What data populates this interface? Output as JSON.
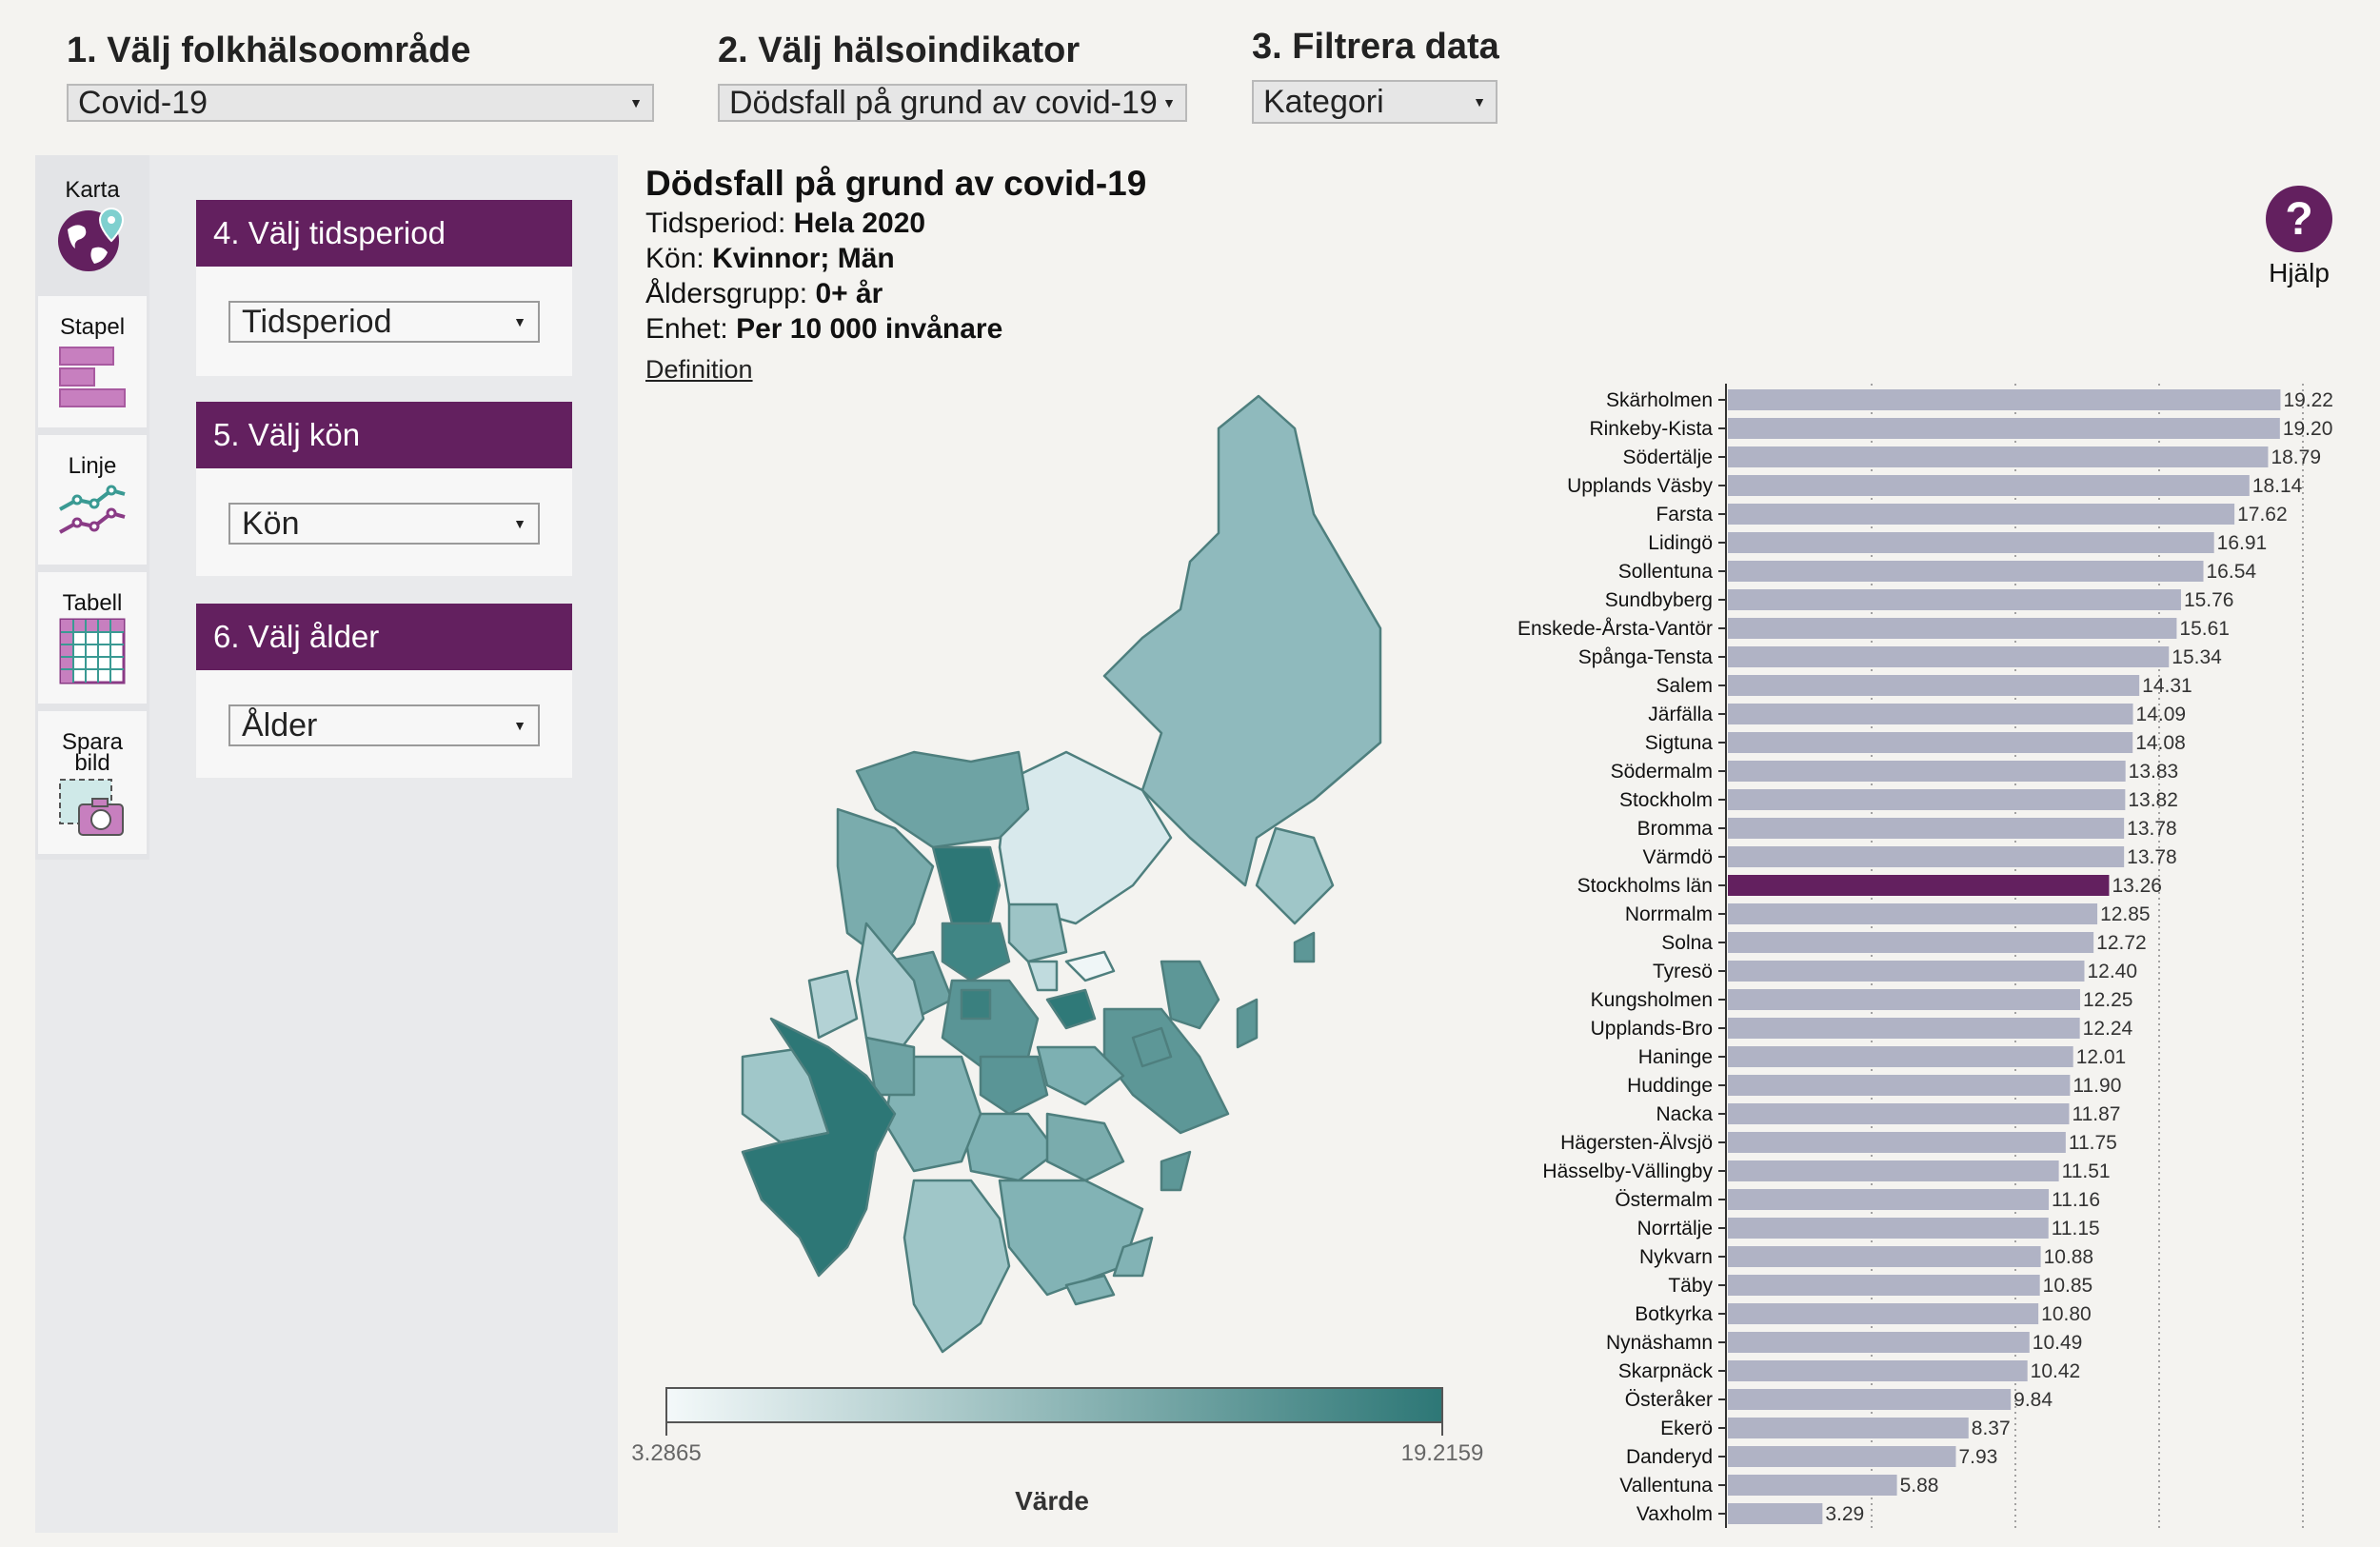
{
  "steps": {
    "step1": {
      "title": "1. Välj folkhälsoområde",
      "value": "Covid-19"
    },
    "step2": {
      "title": "2. Välj hälsoindikator",
      "value": "Dödsfall på grund av covid-19"
    },
    "step3": {
      "title": "3. Filtrera data",
      "value": "Kategori"
    }
  },
  "tools": [
    {
      "label": "Karta",
      "icon": "globe-icon"
    },
    {
      "label": "Stapel",
      "icon": "bar-chart-icon"
    },
    {
      "label": "Linje",
      "icon": "line-chart-icon"
    },
    {
      "label": "Tabell",
      "icon": "table-icon"
    },
    {
      "label": "Spara bild",
      "icon": "camera-icon"
    }
  ],
  "filters": [
    {
      "title": "4. Välj tidsperiod",
      "value": "Tidsperiod"
    },
    {
      "title": "5. Välj kön",
      "value": "Kön"
    },
    {
      "title": "6. Välj ålder",
      "value": "Ålder"
    }
  ],
  "info": {
    "title": "Dödsfall på grund av covid-19",
    "period_label": "Tidsperiod:",
    "period_value": "Hela 2020",
    "sex_label": "Kön:",
    "sex_value": "Kvinnor; Män",
    "age_label": "Åldersgrupp:",
    "age_value": "0+ år",
    "unit_label": "Enhet:",
    "unit_value": "Per 10 000 invånare",
    "definition_link": "Definition"
  },
  "help": {
    "label": "Hjälp",
    "icon": "question-icon"
  },
  "legend": {
    "min": "3.2865",
    "max": "19.2159",
    "title": "Värde",
    "color_low": "#f4f9fa",
    "color_high": "#2d7776"
  },
  "colors": {
    "accent": "#63205f",
    "bar": "#b0b3c5",
    "highlight_bar": "#63205f"
  },
  "chart_data": {
    "type": "bar",
    "orientation": "horizontal",
    "categories": [
      "Skärholmen",
      "Rinkeby-Kista",
      "Södertälje",
      "Upplands Väsby",
      "Farsta",
      "Lidingö",
      "Sollentuna",
      "Sundbyberg",
      "Enskede-Årsta-Vantör",
      "Spånga-Tensta",
      "Salem",
      "Järfälla",
      "Sigtuna",
      "Södermalm",
      "Stockholm",
      "Bromma",
      "Värmdö",
      "Stockholms län",
      "Norrmalm",
      "Solna",
      "Tyresö",
      "Kungsholmen",
      "Upplands-Bro",
      "Haninge",
      "Huddinge",
      "Nacka",
      "Hägersten-Älvsjö",
      "Hässelby-Vällingby",
      "Östermalm",
      "Norrtälje",
      "Nykvarn",
      "Täby",
      "Botkyrka",
      "Nynäshamn",
      "Skarpnäck",
      "Österåker",
      "Ekerö",
      "Danderyd",
      "Vallentuna",
      "Vaxholm"
    ],
    "values": [
      19.22,
      19.2,
      18.79,
      18.14,
      17.62,
      16.91,
      16.54,
      15.76,
      15.61,
      15.34,
      14.31,
      14.09,
      14.08,
      13.83,
      13.82,
      13.78,
      13.78,
      13.26,
      12.85,
      12.72,
      12.4,
      12.25,
      12.24,
      12.01,
      11.9,
      11.87,
      11.75,
      11.51,
      11.16,
      11.15,
      10.88,
      10.85,
      10.8,
      10.49,
      10.42,
      9.84,
      8.37,
      7.93,
      5.88,
      3.29
    ],
    "value_labels": [
      "19.22",
      "19.20",
      "18.79",
      "18.14",
      "17.62",
      "16.91",
      "16.54",
      "15.76",
      "15.61",
      "15.34",
      "14.31",
      "14.09",
      "14.08",
      "13.83",
      "13.82",
      "13.78",
      "13.78",
      "13.26",
      "12.85",
      "12.72",
      "12.40",
      "12.25",
      "12.24",
      "12.01",
      "11.90",
      "11.87",
      "11.75",
      "11.51",
      "11.16",
      "11.15",
      "10.88",
      "10.85",
      "10.80",
      "10.49",
      "10.42",
      "9.84",
      "8.37",
      "7.93",
      "5.88",
      "3.29"
    ],
    "highlight": "Stockholms län",
    "xlim": [
      0,
      20
    ],
    "grid": "vertical dotted every 5"
  }
}
